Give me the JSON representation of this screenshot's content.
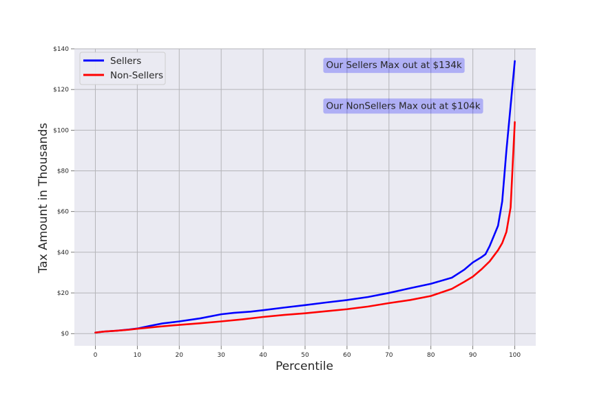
{
  "chart_data": {
    "type": "line",
    "title": "",
    "xlabel": "Percentile",
    "ylabel": "Tax Amount in Thousands",
    "xlim": [
      -5,
      105
    ],
    "ylim": [
      -6,
      140
    ],
    "x_ticks": [
      0,
      10,
      20,
      30,
      40,
      50,
      60,
      70,
      80,
      90,
      100
    ],
    "y_ticks": [
      0,
      20,
      40,
      60,
      80,
      100,
      120,
      140
    ],
    "y_tick_labels": [
      "$0",
      "$20",
      "$40",
      "$60",
      "$80",
      "$100",
      "$120",
      "$140"
    ],
    "grid": true,
    "legend_position": "top-left",
    "series": [
      {
        "name": "Sellers",
        "color": "#0000ff",
        "x": [
          0,
          2,
          5,
          8,
          10,
          13,
          16,
          20,
          25,
          30,
          33,
          37,
          40,
          45,
          50,
          55,
          60,
          65,
          70,
          75,
          80,
          85,
          88,
          90,
          92,
          93,
          94,
          95,
          96,
          97,
          98,
          99,
          100
        ],
        "y": [
          0.5,
          1,
          1.4,
          2,
          2.5,
          3.8,
          5,
          6,
          7.5,
          9.5,
          10.2,
          10.8,
          11.5,
          12.8,
          14,
          15.3,
          16.5,
          18,
          20,
          22.3,
          24.5,
          27.5,
          31.5,
          35,
          37.5,
          39,
          43,
          48,
          53,
          65,
          90,
          112,
          134
        ]
      },
      {
        "name": "Non-Sellers",
        "color": "#ff0000",
        "x": [
          0,
          2,
          5,
          8,
          10,
          15,
          20,
          25,
          30,
          35,
          40,
          45,
          50,
          55,
          60,
          65,
          70,
          75,
          80,
          85,
          88,
          90,
          92,
          94,
          96,
          97,
          98,
          99,
          100
        ],
        "y": [
          0.5,
          1,
          1.4,
          1.9,
          2.4,
          3.4,
          4.3,
          5.1,
          6,
          7,
          8.2,
          9.2,
          10,
          11,
          12,
          13.3,
          15,
          16.5,
          18.5,
          22,
          25.5,
          28,
          31.5,
          35.5,
          41,
          44.5,
          50,
          62,
          104
        ]
      }
    ],
    "annotations": [
      {
        "text": "Our Sellers Max out at $134k",
        "x": 55,
        "y": 130.5,
        "color": "#0000ff"
      },
      {
        "text": "Our NonSellers Max out at $104k",
        "x": 55,
        "y": 110.5,
        "color": "#0000ff"
      }
    ]
  }
}
